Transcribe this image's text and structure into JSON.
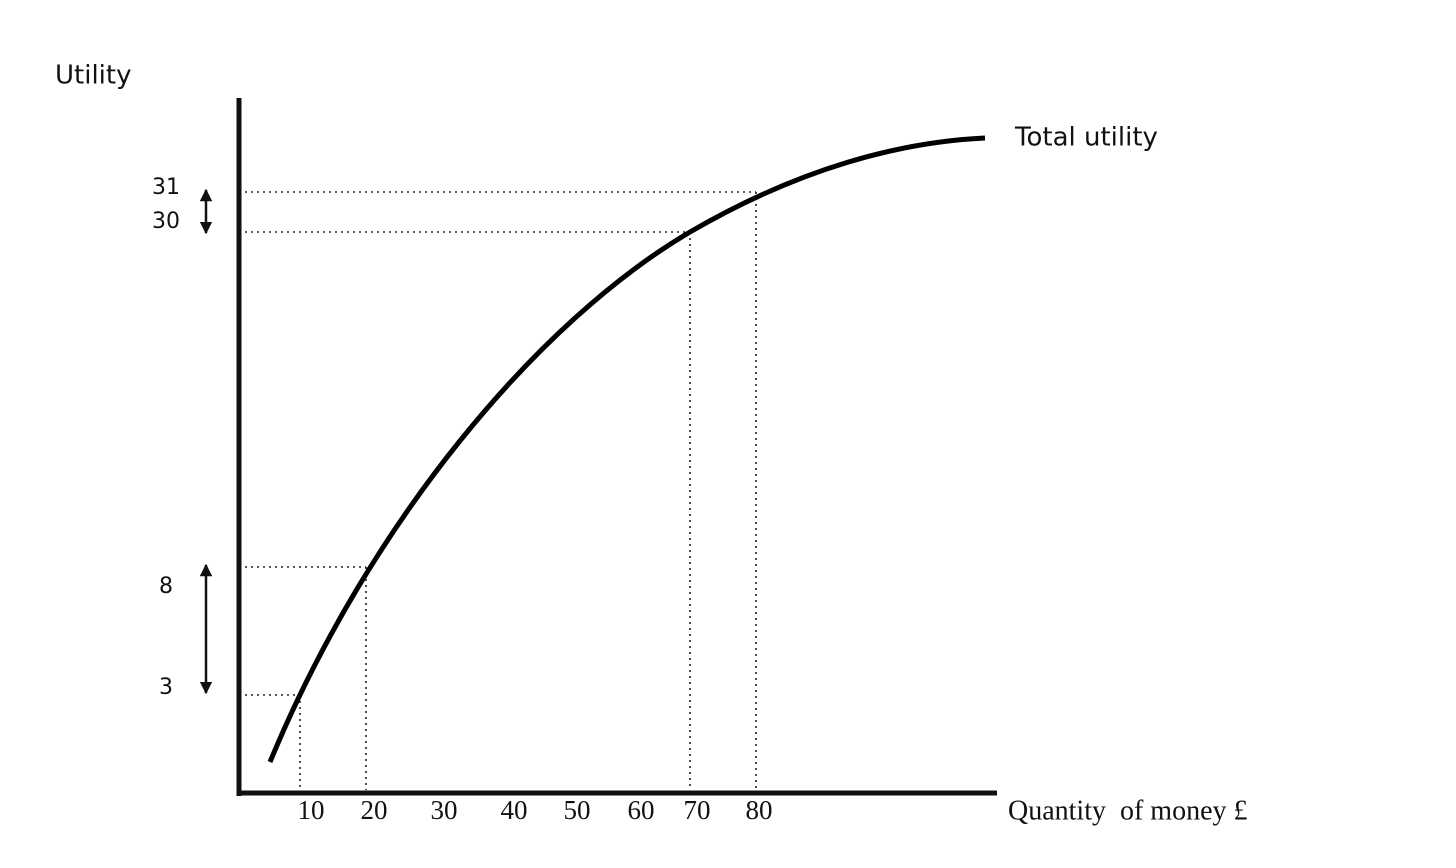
{
  "y_axis_label": "Utility",
  "x_axis_label": "Quantity  of money £",
  "curve_label": "Total utility",
  "x_ticks": [
    10,
    20,
    30,
    40,
    50,
    60,
    70,
    80
  ],
  "y_ticks": [
    31,
    30,
    8,
    3
  ]
}
